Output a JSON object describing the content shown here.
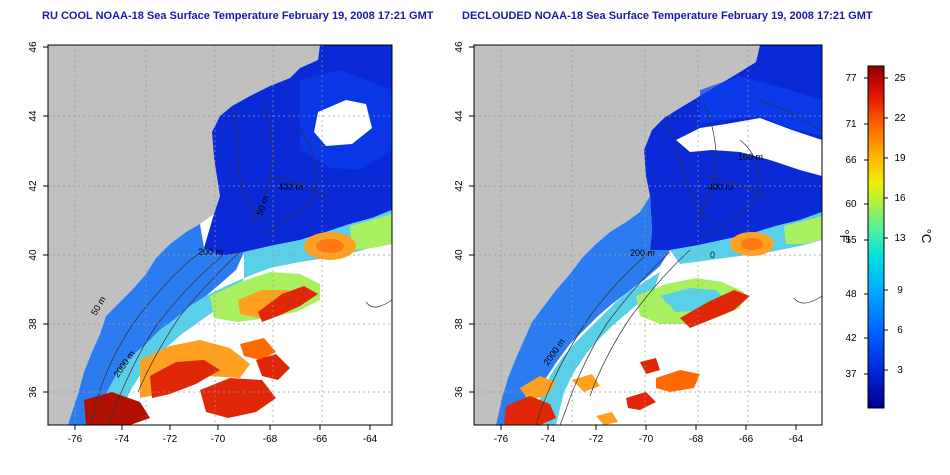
{
  "panels": [
    {
      "title": "RU COOL NOAA-18 Sea Surface Temperature February 19, 2008 17:21 GMT",
      "contour_labels": [
        "200 m",
        "50 m",
        "2000 m",
        "400 m",
        "50 m"
      ]
    },
    {
      "title": "DECLOUDED NOAA-18 Sea Surface Temperature February 19, 2008 17:21 GMT",
      "contour_labels": [
        "200 m",
        "2000 m",
        "400 m",
        "100 m",
        "0"
      ]
    }
  ],
  "axes": {
    "lon_ticks": [
      "-76",
      "-74",
      "-72",
      "-70",
      "-68",
      "-66",
      "-64"
    ],
    "lat_ticks": [
      "46",
      "44",
      "42",
      "40",
      "38",
      "36"
    ]
  },
  "colorbar": {
    "fahrenheit_label": "°F",
    "celsius_label": "°C",
    "fahrenheit_ticks": [
      "77",
      "71",
      "66",
      "60",
      "55",
      "48",
      "42",
      "37"
    ],
    "celsius_ticks": [
      "25",
      "22",
      "19",
      "16",
      "13",
      "9",
      "6",
      "3"
    ],
    "colors": [
      "#00008b",
      "#0022d8",
      "#0060ff",
      "#00a8ff",
      "#00e0e0",
      "#50f0a0",
      "#b0f040",
      "#f0f000",
      "#ffb000",
      "#ff6a00",
      "#e01000",
      "#900000"
    ]
  },
  "colors": {
    "land": "#c0c0c0",
    "cold": "#0a2ad8",
    "cool": "#2a7cf0",
    "mid": "#5ad0e8",
    "warm": "#a8f060",
    "orange": "#ffa020",
    "hot": "#e02808",
    "title": "#1a1aa8"
  }
}
